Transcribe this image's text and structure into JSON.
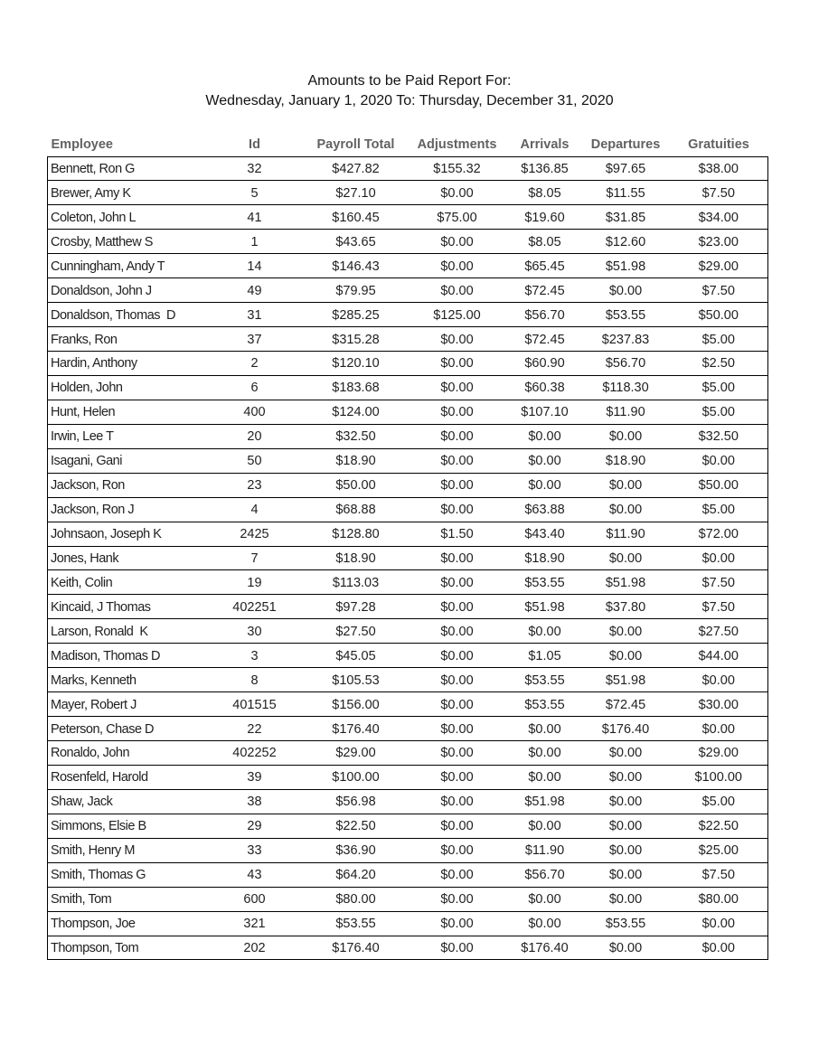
{
  "report": {
    "title_line1": "Amounts to be Paid Report For:",
    "title_line2": "Wednesday, January 1, 2020 To: Thursday, December 31, 2020"
  },
  "table": {
    "columns": [
      {
        "key": "employee",
        "label": "Employee"
      },
      {
        "key": "id",
        "label": "Id"
      },
      {
        "key": "payroll",
        "label": "Payroll Total"
      },
      {
        "key": "adjustments",
        "label": "Adjustments"
      },
      {
        "key": "arrivals",
        "label": "Arrivals"
      },
      {
        "key": "departures",
        "label": "Departures"
      },
      {
        "key": "gratuities",
        "label": "Gratuities"
      }
    ],
    "rows": [
      [
        "Bennett, Ron G",
        "32",
        "$427.82",
        "$155.32",
        "$136.85",
        "$97.65",
        "$38.00"
      ],
      [
        "Brewer, Amy K",
        "5",
        "$27.10",
        "$0.00",
        "$8.05",
        "$11.55",
        "$7.50"
      ],
      [
        "Coleton, John L",
        "41",
        "$160.45",
        "$75.00",
        "$19.60",
        "$31.85",
        "$34.00"
      ],
      [
        "Crosby, Matthew S",
        "1",
        "$43.65",
        "$0.00",
        "$8.05",
        "$12.60",
        "$23.00"
      ],
      [
        "Cunningham, Andy T",
        "14",
        "$146.43",
        "$0.00",
        "$65.45",
        "$51.98",
        "$29.00"
      ],
      [
        "Donaldson, John J",
        "49",
        "$79.95",
        "$0.00",
        "$72.45",
        "$0.00",
        "$7.50"
      ],
      [
        "Donaldson, Thomas  D",
        "31",
        "$285.25",
        "$125.00",
        "$56.70",
        "$53.55",
        "$50.00"
      ],
      [
        "Franks, Ron",
        "37",
        "$315.28",
        "$0.00",
        "$72.45",
        "$237.83",
        "$5.00"
      ],
      [
        "Hardin, Anthony",
        "2",
        "$120.10",
        "$0.00",
        "$60.90",
        "$56.70",
        "$2.50"
      ],
      [
        "Holden, John",
        "6",
        "$183.68",
        "$0.00",
        "$60.38",
        "$118.30",
        "$5.00"
      ],
      [
        "Hunt, Helen",
        "400",
        "$124.00",
        "$0.00",
        "$107.10",
        "$11.90",
        "$5.00"
      ],
      [
        "Irwin, Lee T",
        "20",
        "$32.50",
        "$0.00",
        "$0.00",
        "$0.00",
        "$32.50"
      ],
      [
        "Isagani, Gani",
        "50",
        "$18.90",
        "$0.00",
        "$0.00",
        "$18.90",
        "$0.00"
      ],
      [
        "Jackson, Ron",
        "23",
        "$50.00",
        "$0.00",
        "$0.00",
        "$0.00",
        "$50.00"
      ],
      [
        "Jackson, Ron J",
        "4",
        "$68.88",
        "$0.00",
        "$63.88",
        "$0.00",
        "$5.00"
      ],
      [
        "Johnsaon, Joseph K",
        "2425",
        "$128.80",
        "$1.50",
        "$43.40",
        "$11.90",
        "$72.00"
      ],
      [
        "Jones, Hank",
        "7",
        "$18.90",
        "$0.00",
        "$18.90",
        "$0.00",
        "$0.00"
      ],
      [
        "Keith, Colin",
        "19",
        "$113.03",
        "$0.00",
        "$53.55",
        "$51.98",
        "$7.50"
      ],
      [
        "Kincaid, J Thomas",
        "402251",
        "$97.28",
        "$0.00",
        "$51.98",
        "$37.80",
        "$7.50"
      ],
      [
        "Larson, Ronald  K",
        "30",
        "$27.50",
        "$0.00",
        "$0.00",
        "$0.00",
        "$27.50"
      ],
      [
        "Madison, Thomas D",
        "3",
        "$45.05",
        "$0.00",
        "$1.05",
        "$0.00",
        "$44.00"
      ],
      [
        "Marks, Kenneth",
        "8",
        "$105.53",
        "$0.00",
        "$53.55",
        "$51.98",
        "$0.00"
      ],
      [
        "Mayer, Robert J",
        "401515",
        "$156.00",
        "$0.00",
        "$53.55",
        "$72.45",
        "$30.00"
      ],
      [
        "Peterson, Chase D",
        "22",
        "$176.40",
        "$0.00",
        "$0.00",
        "$176.40",
        "$0.00"
      ],
      [
        "Ronaldo, John",
        "402252",
        "$29.00",
        "$0.00",
        "$0.00",
        "$0.00",
        "$29.00"
      ],
      [
        "Rosenfeld, Harold",
        "39",
        "$100.00",
        "$0.00",
        "$0.00",
        "$0.00",
        "$100.00"
      ],
      [
        "Shaw, Jack",
        "38",
        "$56.98",
        "$0.00",
        "$51.98",
        "$0.00",
        "$5.00"
      ],
      [
        "Simmons, Elsie B",
        "29",
        "$22.50",
        "$0.00",
        "$0.00",
        "$0.00",
        "$22.50"
      ],
      [
        "Smith, Henry M",
        "33",
        "$36.90",
        "$0.00",
        "$11.90",
        "$0.00",
        "$25.00"
      ],
      [
        "Smith, Thomas G",
        "43",
        "$64.20",
        "$0.00",
        "$56.70",
        "$0.00",
        "$7.50"
      ],
      [
        "Smith, Tom",
        "600",
        "$80.00",
        "$0.00",
        "$0.00",
        "$0.00",
        "$80.00"
      ],
      [
        "Thompson, Joe",
        "321",
        "$53.55",
        "$0.00",
        "$0.00",
        "$53.55",
        "$0.00"
      ],
      [
        "Thompson, Tom",
        "202",
        "$176.40",
        "$0.00",
        "$176.40",
        "$0.00",
        "$0.00"
      ]
    ]
  },
  "colors": {
    "page_background": "#ffffff",
    "title_text": "#121212",
    "header_text": "#636160",
    "body_text": "#1f1f1f",
    "table_border": "#000000"
  }
}
